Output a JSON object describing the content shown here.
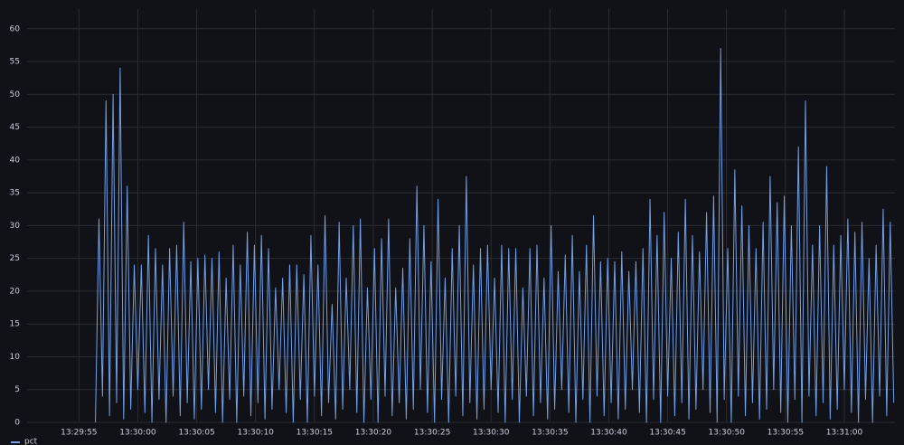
{
  "chart_data": {
    "type": "line",
    "xlim": [
      48590.6,
      48664.3
    ],
    "xticks": [
      {
        "value": 48595,
        "label": "13:29:55"
      },
      {
        "value": 48600,
        "label": "13:30:00"
      },
      {
        "value": 48605,
        "label": "13:30:05"
      },
      {
        "value": 48610,
        "label": "13:30:10"
      },
      {
        "value": 48615,
        "label": "13:30:15"
      },
      {
        "value": 48620,
        "label": "13:30:20"
      },
      {
        "value": 48625,
        "label": "13:30:25"
      },
      {
        "value": 48630,
        "label": "13:30:30"
      },
      {
        "value": 48635,
        "label": "13:30:35"
      },
      {
        "value": 48640,
        "label": "13:30:40"
      },
      {
        "value": 48645,
        "label": "13:30:45"
      },
      {
        "value": 48650,
        "label": "13:30:50"
      },
      {
        "value": 48655,
        "label": "13:30:55"
      },
      {
        "value": 48660,
        "label": "13:31:00"
      }
    ],
    "ylim": [
      0,
      63
    ],
    "yticks": [
      0,
      5,
      10,
      15,
      20,
      25,
      30,
      35,
      40,
      45,
      50,
      55,
      60
    ],
    "grid": true,
    "legend": "bottom-left",
    "x": [
      48596.4,
      48596.7,
      48597.0,
      48597.3,
      48597.6,
      48597.9,
      48598.2,
      48598.5,
      48598.8,
      48599.1,
      48599.4,
      48599.7,
      48600.0,
      48600.3,
      48600.6,
      48600.9,
      48601.2,
      48601.5,
      48601.8,
      48602.1,
      48602.4,
      48602.7,
      48603.0,
      48603.3,
      48603.6,
      48603.9,
      48604.2,
      48604.5,
      48604.8,
      48605.1,
      48605.4,
      48605.7,
      48606.0,
      48606.3,
      48606.6,
      48606.9,
      48607.2,
      48607.5,
      48607.8,
      48608.1,
      48608.4,
      48608.7,
      48609.0,
      48609.3,
      48609.6,
      48609.9,
      48610.2,
      48610.5,
      48610.8,
      48611.1,
      48611.4,
      48611.7,
      48612.0,
      48612.3,
      48612.6,
      48612.9,
      48613.2,
      48613.5,
      48613.8,
      48614.1,
      48614.4,
      48614.7,
      48615.0,
      48615.3,
      48615.6,
      48615.9,
      48616.2,
      48616.5,
      48616.8,
      48617.1,
      48617.4,
      48617.7,
      48618.0,
      48618.3,
      48618.6,
      48618.9,
      48619.2,
      48619.5,
      48619.8,
      48620.1,
      48620.4,
      48620.7,
      48621.0,
      48621.3,
      48621.6,
      48621.9,
      48622.2,
      48622.5,
      48622.8,
      48623.1,
      48623.4,
      48623.7,
      48624.0,
      48624.3,
      48624.6,
      48624.9,
      48625.2,
      48625.5,
      48625.8,
      48626.1,
      48626.4,
      48626.7,
      48627.0,
      48627.3,
      48627.6,
      48627.9,
      48628.2,
      48628.5,
      48628.8,
      48629.1,
      48629.4,
      48629.7,
      48630.0,
      48630.3,
      48630.6,
      48630.9,
      48631.2,
      48631.5,
      48631.8,
      48632.1,
      48632.4,
      48632.7,
      48633.0,
      48633.3,
      48633.6,
      48633.9,
      48634.2,
      48634.5,
      48634.8,
      48635.1,
      48635.4,
      48635.7,
      48636.0,
      48636.3,
      48636.6,
      48636.9,
      48637.2,
      48637.5,
      48637.8,
      48638.1,
      48638.4,
      48638.7,
      48639.0,
      48639.3,
      48639.6,
      48639.9,
      48640.2,
      48640.5,
      48640.8,
      48641.1,
      48641.4,
      48641.7,
      48642.0,
      48642.3,
      48642.6,
      48642.9,
      48643.2,
      48643.5,
      48643.8,
      48644.1,
      48644.4,
      48644.7,
      48645.0,
      48645.3,
      48645.6,
      48645.9,
      48646.2,
      48646.5,
      48646.8,
      48647.1,
      48647.4,
      48647.7,
      48648.0,
      48648.3,
      48648.6,
      48648.9,
      48649.2,
      48649.5,
      48649.8,
      48650.1,
      48650.4,
      48650.7,
      48651.0,
      48651.3,
      48651.6,
      48651.9,
      48652.2,
      48652.5,
      48652.8,
      48653.1,
      48653.4,
      48653.7,
      48654.0,
      48654.3,
      48654.6,
      48654.9,
      48655.2,
      48655.5,
      48655.8,
      48656.1,
      48656.4,
      48656.7,
      48657.0,
      48657.3,
      48657.6,
      48657.9,
      48658.2,
      48658.5,
      48658.8,
      48659.1,
      48659.4,
      48659.7,
      48660.0,
      48660.3,
      48660.6,
      48660.9,
      48661.2,
      48661.5,
      48661.8,
      48662.1,
      48662.4,
      48662.7,
      48663.0,
      48663.3,
      48663.6,
      48663.9,
      48664.2
    ],
    "series": [
      {
        "name": "pct",
        "color": "#73a0e8",
        "values": [
          0,
          31,
          4,
          49,
          1,
          50,
          3,
          54,
          0.5,
          36,
          2,
          24,
          5,
          24,
          1.5,
          28.5,
          0,
          26.5,
          3.5,
          24,
          0,
          26.5,
          4,
          27,
          1,
          30.5,
          3,
          24.5,
          0.5,
          25,
          2,
          25.5,
          5,
          25,
          1.5,
          26,
          0,
          22,
          3.5,
          27,
          0,
          24,
          4,
          29,
          1,
          27,
          3,
          28.5,
          0.5,
          26.5,
          2,
          20.5,
          5,
          22,
          1.5,
          24,
          0,
          24,
          3.5,
          22.5,
          0,
          28.5,
          4,
          24,
          1,
          31.5,
          3,
          18,
          0.5,
          30.5,
          2,
          22,
          5,
          30,
          1.5,
          31,
          0,
          20.5,
          3.5,
          26.5,
          0,
          28,
          4,
          31,
          1,
          20.5,
          3,
          23.5,
          0.5,
          28,
          2,
          36,
          5,
          30,
          1.5,
          24.5,
          0,
          34,
          3.5,
          22,
          0,
          26.5,
          4,
          30,
          1,
          37.5,
          3,
          24,
          0.5,
          26.5,
          2,
          27,
          5,
          22,
          1.5,
          27,
          0,
          26.5,
          3.5,
          26.5,
          0,
          20.5,
          4,
          26.5,
          1,
          27,
          3,
          22,
          0.5,
          30,
          2,
          23,
          5,
          25.5,
          1.5,
          28.5,
          0,
          23,
          3.5,
          27,
          0,
          31.5,
          4,
          24.5,
          1,
          25,
          3,
          24.5,
          0.5,
          26,
          2,
          23,
          5,
          24.5,
          1.5,
          26.5,
          0,
          34,
          3.5,
          28.5,
          0,
          32,
          4,
          25,
          1,
          29,
          3,
          34,
          0.5,
          28.5,
          2,
          26,
          5,
          32,
          1.5,
          34.5,
          0,
          57,
          3.5,
          26.5,
          0,
          38.5,
          4,
          33,
          1,
          30,
          3,
          26.5,
          0.5,
          30.5,
          2,
          37.5,
          5,
          33.5,
          1.5,
          34.5,
          0,
          30,
          3.5,
          42,
          0,
          49,
          4,
          27,
          1,
          30,
          3,
          39,
          0.5,
          27,
          2,
          28.5,
          5,
          31,
          1.5,
          29,
          0,
          30.5,
          3.5,
          25,
          0,
          27,
          4,
          32.5,
          1,
          30.5,
          3
        ]
      }
    ]
  }
}
